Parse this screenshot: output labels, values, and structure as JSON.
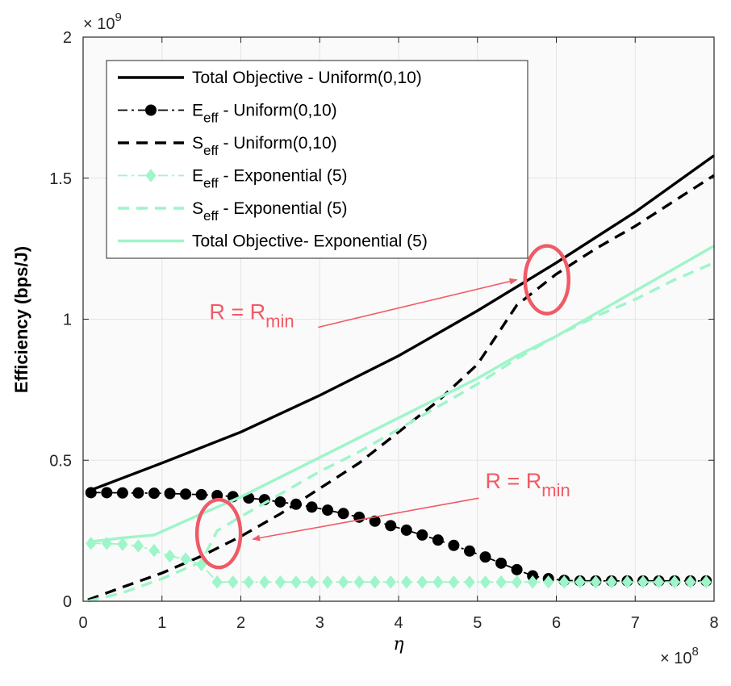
{
  "chart_data": {
    "type": "line",
    "xlabel": "η",
    "ylabel": "Efficiency (bps/J)",
    "x_exponent": "8",
    "y_exponent": "9",
    "exponent_prefix": "× 10",
    "xlim": [
      0,
      8
    ],
    "ylim": [
      0,
      2
    ],
    "xticks": [
      "0",
      "1",
      "2",
      "3",
      "4",
      "5",
      "6",
      "7",
      "8"
    ],
    "yticks": [
      "0",
      "0.5",
      "1",
      "1.5",
      "2"
    ],
    "grid": true,
    "legend_position": "top-left",
    "series": [
      {
        "name": "Total Objective - Uniform(0,10)",
        "legend_main": "Total Objective - Uniform(0,10)",
        "legend_sub": "",
        "legend_rest": "",
        "color": "#000000",
        "style": "solid",
        "marker": "none",
        "x": [
          0.06,
          1,
          2,
          3,
          4,
          5,
          6,
          7,
          8
        ],
        "y": [
          0.39,
          0.49,
          0.6,
          0.73,
          0.87,
          1.03,
          1.2,
          1.38,
          1.58
        ]
      },
      {
        "name": "Eeff - Uniform(0,10)",
        "legend_main": "E",
        "legend_sub": "eff",
        "legend_rest": " - Uniform(0,10)",
        "color": "#000000",
        "style": "dashdot",
        "marker": "circle",
        "x": [
          0.1,
          0.3,
          0.5,
          0.7,
          0.9,
          1.1,
          1.3,
          1.5,
          1.7,
          1.9,
          2.1,
          2.3,
          2.5,
          2.7,
          2.9,
          3.1,
          3.3,
          3.5,
          3.7,
          3.9,
          4.1,
          4.3,
          4.5,
          4.7,
          4.9,
          5.1,
          5.3,
          5.5,
          5.7,
          5.9,
          6.1,
          6.3,
          6.5,
          6.7,
          6.9,
          7.1,
          7.3,
          7.5,
          7.7,
          7.9
        ],
        "y": [
          0.385,
          0.385,
          0.384,
          0.384,
          0.383,
          0.382,
          0.38,
          0.378,
          0.375,
          0.371,
          0.366,
          0.36,
          0.352,
          0.344,
          0.334,
          0.323,
          0.311,
          0.298,
          0.284,
          0.268,
          0.252,
          0.235,
          0.217,
          0.198,
          0.178,
          0.157,
          0.135,
          0.112,
          0.09,
          0.08,
          0.074,
          0.072,
          0.072,
          0.072,
          0.072,
          0.072,
          0.072,
          0.072,
          0.072,
          0.072
        ]
      },
      {
        "name": "Seff - Uniform(0,10)",
        "legend_main": "S",
        "legend_sub": "eff",
        "legend_rest": " - Uniform(0,10)",
        "color": "#000000",
        "style": "dashed",
        "marker": "none",
        "x": [
          0.06,
          0.5,
          1,
          1.5,
          2,
          2.5,
          3,
          3.5,
          4,
          4.5,
          5,
          5.5,
          6,
          6.5,
          7,
          7.5,
          8
        ],
        "y": [
          0.005,
          0.05,
          0.1,
          0.16,
          0.23,
          0.31,
          0.4,
          0.49,
          0.6,
          0.71,
          0.84,
          1.05,
          1.16,
          1.25,
          1.33,
          1.42,
          1.51
        ]
      },
      {
        "name": "Eeff - Exponential (5)",
        "legend_main": "E",
        "legend_sub": "eff",
        "legend_rest": " - Exponential (5)",
        "color": "#9ef5c9",
        "style": "dashdot",
        "marker": "diamond",
        "x": [
          0.1,
          0.3,
          0.5,
          0.7,
          0.9,
          1.1,
          1.3,
          1.5,
          1.7,
          1.9,
          2.1,
          2.3,
          2.5,
          2.7,
          2.9,
          3.1,
          3.3,
          3.5,
          3.7,
          3.9,
          4.1,
          4.3,
          4.5,
          4.7,
          4.9,
          5.1,
          5.3,
          5.5,
          5.7,
          5.9,
          6.1,
          6.3,
          6.5,
          6.7,
          6.9,
          7.1,
          7.3,
          7.5,
          7.7,
          7.9
        ],
        "y": [
          0.205,
          0.205,
          0.202,
          0.196,
          0.18,
          0.16,
          0.15,
          0.13,
          0.068,
          0.068,
          0.068,
          0.068,
          0.068,
          0.068,
          0.068,
          0.068,
          0.068,
          0.068,
          0.068,
          0.068,
          0.068,
          0.068,
          0.068,
          0.068,
          0.068,
          0.068,
          0.068,
          0.068,
          0.068,
          0.068,
          0.068,
          0.068,
          0.068,
          0.068,
          0.068,
          0.068,
          0.068,
          0.068,
          0.068,
          0.068
        ]
      },
      {
        "name": "Seff - Exponential (5)",
        "legend_main": "S",
        "legend_sub": "eff",
        "legend_rest": " - Exponential (5)",
        "color": "#9ef5c9",
        "style": "dashed",
        "marker": "none",
        "x": [
          0.06,
          0.5,
          1,
          1.5,
          1.7,
          2,
          2.5,
          3,
          3.5,
          4,
          4.5,
          5,
          5.5,
          6,
          6.5,
          7,
          7.5,
          8
        ],
        "y": [
          0.0,
          0.03,
          0.08,
          0.14,
          0.25,
          0.3,
          0.38,
          0.46,
          0.53,
          0.61,
          0.69,
          0.77,
          0.86,
          0.94,
          1.01,
          1.07,
          1.14,
          1.2
        ]
      },
      {
        "name": "Total Objective- Exponential (5)",
        "legend_main": "Total Objective- Exponential (5)",
        "legend_sub": "",
        "legend_rest": "",
        "color": "#9ef5c9",
        "style": "solid",
        "marker": "none",
        "x": [
          0.06,
          0.5,
          0.9,
          1.5,
          2,
          2.5,
          3,
          3.5,
          4,
          4.5,
          5,
          5.5,
          6,
          6.5,
          7,
          7.5,
          8
        ],
        "y": [
          0.21,
          0.225,
          0.235,
          0.31,
          0.37,
          0.44,
          0.51,
          0.58,
          0.65,
          0.72,
          0.79,
          0.87,
          0.94,
          1.02,
          1.1,
          1.18,
          1.26
        ]
      }
    ],
    "annotations": [
      {
        "text": "R = R",
        "sub": "min",
        "color": "#f05a66",
        "x": 1.6,
        "y": 1.0,
        "arrow_to": [
          5.5,
          1.14
        ],
        "ellipse_center": [
          5.88,
          1.14
        ]
      },
      {
        "text": "R = R",
        "sub": "min",
        "color": "#f05a66",
        "x": 5.1,
        "y": 0.4,
        "arrow_to": [
          2.15,
          0.22
        ],
        "ellipse_center": [
          1.72,
          0.24
        ]
      }
    ]
  }
}
